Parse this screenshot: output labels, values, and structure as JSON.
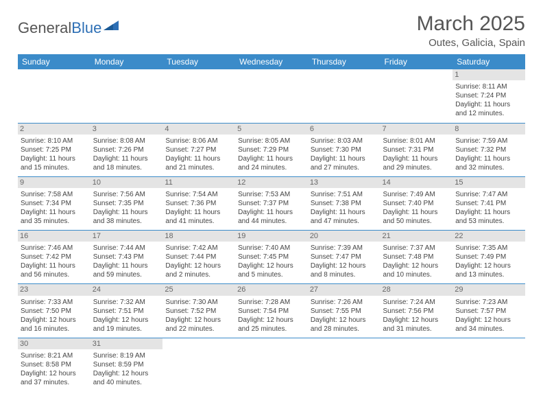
{
  "logo": {
    "part1": "General",
    "part2": "Blue"
  },
  "title": {
    "month": "March 2025",
    "location": "Outes, Galicia, Spain"
  },
  "day_headers": [
    "Sunday",
    "Monday",
    "Tuesday",
    "Wednesday",
    "Thursday",
    "Friday",
    "Saturday"
  ],
  "colors": {
    "header_bg": "#3b8bc9",
    "header_fg": "#ffffff",
    "daynum_bg": "#e4e4e4",
    "border": "#3b8bc9",
    "logo_blue": "#2d6fb5"
  },
  "weeks": [
    [
      null,
      null,
      null,
      null,
      null,
      null,
      {
        "n": "1",
        "sr": "Sunrise: 8:11 AM",
        "ss": "Sunset: 7:24 PM",
        "d1": "Daylight: 11 hours",
        "d2": "and 12 minutes."
      }
    ],
    [
      {
        "n": "2",
        "sr": "Sunrise: 8:10 AM",
        "ss": "Sunset: 7:25 PM",
        "d1": "Daylight: 11 hours",
        "d2": "and 15 minutes."
      },
      {
        "n": "3",
        "sr": "Sunrise: 8:08 AM",
        "ss": "Sunset: 7:26 PM",
        "d1": "Daylight: 11 hours",
        "d2": "and 18 minutes."
      },
      {
        "n": "4",
        "sr": "Sunrise: 8:06 AM",
        "ss": "Sunset: 7:27 PM",
        "d1": "Daylight: 11 hours",
        "d2": "and 21 minutes."
      },
      {
        "n": "5",
        "sr": "Sunrise: 8:05 AM",
        "ss": "Sunset: 7:29 PM",
        "d1": "Daylight: 11 hours",
        "d2": "and 24 minutes."
      },
      {
        "n": "6",
        "sr": "Sunrise: 8:03 AM",
        "ss": "Sunset: 7:30 PM",
        "d1": "Daylight: 11 hours",
        "d2": "and 27 minutes."
      },
      {
        "n": "7",
        "sr": "Sunrise: 8:01 AM",
        "ss": "Sunset: 7:31 PM",
        "d1": "Daylight: 11 hours",
        "d2": "and 29 minutes."
      },
      {
        "n": "8",
        "sr": "Sunrise: 7:59 AM",
        "ss": "Sunset: 7:32 PM",
        "d1": "Daylight: 11 hours",
        "d2": "and 32 minutes."
      }
    ],
    [
      {
        "n": "9",
        "sr": "Sunrise: 7:58 AM",
        "ss": "Sunset: 7:34 PM",
        "d1": "Daylight: 11 hours",
        "d2": "and 35 minutes."
      },
      {
        "n": "10",
        "sr": "Sunrise: 7:56 AM",
        "ss": "Sunset: 7:35 PM",
        "d1": "Daylight: 11 hours",
        "d2": "and 38 minutes."
      },
      {
        "n": "11",
        "sr": "Sunrise: 7:54 AM",
        "ss": "Sunset: 7:36 PM",
        "d1": "Daylight: 11 hours",
        "d2": "and 41 minutes."
      },
      {
        "n": "12",
        "sr": "Sunrise: 7:53 AM",
        "ss": "Sunset: 7:37 PM",
        "d1": "Daylight: 11 hours",
        "d2": "and 44 minutes."
      },
      {
        "n": "13",
        "sr": "Sunrise: 7:51 AM",
        "ss": "Sunset: 7:38 PM",
        "d1": "Daylight: 11 hours",
        "d2": "and 47 minutes."
      },
      {
        "n": "14",
        "sr": "Sunrise: 7:49 AM",
        "ss": "Sunset: 7:40 PM",
        "d1": "Daylight: 11 hours",
        "d2": "and 50 minutes."
      },
      {
        "n": "15",
        "sr": "Sunrise: 7:47 AM",
        "ss": "Sunset: 7:41 PM",
        "d1": "Daylight: 11 hours",
        "d2": "and 53 minutes."
      }
    ],
    [
      {
        "n": "16",
        "sr": "Sunrise: 7:46 AM",
        "ss": "Sunset: 7:42 PM",
        "d1": "Daylight: 11 hours",
        "d2": "and 56 minutes."
      },
      {
        "n": "17",
        "sr": "Sunrise: 7:44 AM",
        "ss": "Sunset: 7:43 PM",
        "d1": "Daylight: 11 hours",
        "d2": "and 59 minutes."
      },
      {
        "n": "18",
        "sr": "Sunrise: 7:42 AM",
        "ss": "Sunset: 7:44 PM",
        "d1": "Daylight: 12 hours",
        "d2": "and 2 minutes."
      },
      {
        "n": "19",
        "sr": "Sunrise: 7:40 AM",
        "ss": "Sunset: 7:45 PM",
        "d1": "Daylight: 12 hours",
        "d2": "and 5 minutes."
      },
      {
        "n": "20",
        "sr": "Sunrise: 7:39 AM",
        "ss": "Sunset: 7:47 PM",
        "d1": "Daylight: 12 hours",
        "d2": "and 8 minutes."
      },
      {
        "n": "21",
        "sr": "Sunrise: 7:37 AM",
        "ss": "Sunset: 7:48 PM",
        "d1": "Daylight: 12 hours",
        "d2": "and 10 minutes."
      },
      {
        "n": "22",
        "sr": "Sunrise: 7:35 AM",
        "ss": "Sunset: 7:49 PM",
        "d1": "Daylight: 12 hours",
        "d2": "and 13 minutes."
      }
    ],
    [
      {
        "n": "23",
        "sr": "Sunrise: 7:33 AM",
        "ss": "Sunset: 7:50 PM",
        "d1": "Daylight: 12 hours",
        "d2": "and 16 minutes."
      },
      {
        "n": "24",
        "sr": "Sunrise: 7:32 AM",
        "ss": "Sunset: 7:51 PM",
        "d1": "Daylight: 12 hours",
        "d2": "and 19 minutes."
      },
      {
        "n": "25",
        "sr": "Sunrise: 7:30 AM",
        "ss": "Sunset: 7:52 PM",
        "d1": "Daylight: 12 hours",
        "d2": "and 22 minutes."
      },
      {
        "n": "26",
        "sr": "Sunrise: 7:28 AM",
        "ss": "Sunset: 7:54 PM",
        "d1": "Daylight: 12 hours",
        "d2": "and 25 minutes."
      },
      {
        "n": "27",
        "sr": "Sunrise: 7:26 AM",
        "ss": "Sunset: 7:55 PM",
        "d1": "Daylight: 12 hours",
        "d2": "and 28 minutes."
      },
      {
        "n": "28",
        "sr": "Sunrise: 7:24 AM",
        "ss": "Sunset: 7:56 PM",
        "d1": "Daylight: 12 hours",
        "d2": "and 31 minutes."
      },
      {
        "n": "29",
        "sr": "Sunrise: 7:23 AM",
        "ss": "Sunset: 7:57 PM",
        "d1": "Daylight: 12 hours",
        "d2": "and 34 minutes."
      }
    ],
    [
      {
        "n": "30",
        "sr": "Sunrise: 8:21 AM",
        "ss": "Sunset: 8:58 PM",
        "d1": "Daylight: 12 hours",
        "d2": "and 37 minutes."
      },
      {
        "n": "31",
        "sr": "Sunrise: 8:19 AM",
        "ss": "Sunset: 8:59 PM",
        "d1": "Daylight: 12 hours",
        "d2": "and 40 minutes."
      },
      null,
      null,
      null,
      null,
      null
    ]
  ]
}
